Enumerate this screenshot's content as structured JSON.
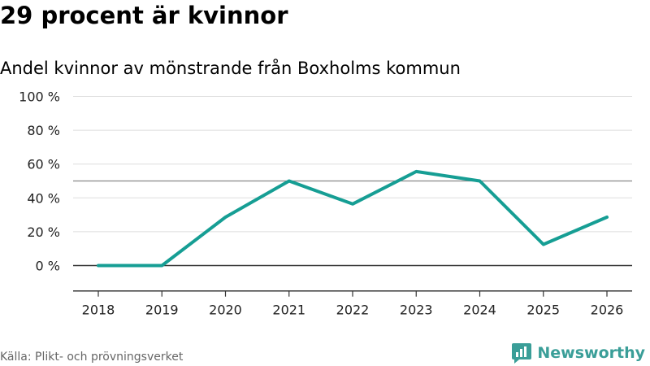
{
  "header": {
    "title": "29 procent är kvinnor",
    "subtitle": "Andel kvinnor av mönstrande från Boxholms kommun"
  },
  "footer": {
    "source": "Källa: Plikt- och prövningsverket",
    "brand": "Newsworthy",
    "brand_color": "#3a9e98"
  },
  "chart_data": {
    "type": "line",
    "title": "29 procent är kvinnor",
    "subtitle": "Andel kvinnor av mönstrande från Boxholms kommun",
    "xlabel": "",
    "ylabel": "",
    "x": [
      "2018",
      "2019",
      "2020",
      "2021",
      "2022",
      "2023",
      "2024",
      "2025",
      "2026"
    ],
    "series": [
      {
        "values": [
          0,
          0,
          28.6,
          50,
          36.4,
          55.6,
          50,
          12.5,
          28.6
        ],
        "color": "#169e94"
      }
    ],
    "ylim": [
      -15,
      100
    ],
    "yticks": [
      0,
      20,
      40,
      60,
      80,
      100
    ],
    "ytick_labels": [
      "0 %",
      "20 %",
      "40 %",
      "60 %",
      "80 %",
      "100 %"
    ],
    "reference_line": 50,
    "grid": true,
    "legend": "none"
  }
}
